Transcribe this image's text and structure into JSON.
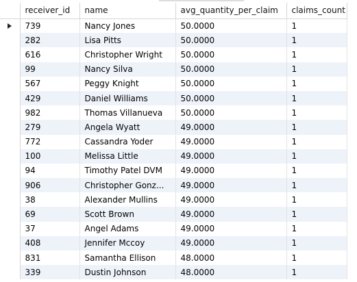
{
  "columns": {
    "receiver_id": "receiver_id",
    "name": "name",
    "avg_quantity_per_claim": "avg_quantity_per_claim",
    "claims_count": "claims_count"
  },
  "current_row_icon": "current-row-arrow-icon",
  "rows": [
    {
      "receiver_id": "739",
      "name": "Nancy Jones",
      "avg_quantity_per_claim": "50.0000",
      "claims_count": "1"
    },
    {
      "receiver_id": "282",
      "name": "Lisa Pitts",
      "avg_quantity_per_claim": "50.0000",
      "claims_count": "1"
    },
    {
      "receiver_id": "616",
      "name": "Christopher Wright",
      "avg_quantity_per_claim": "50.0000",
      "claims_count": "1"
    },
    {
      "receiver_id": "99",
      "name": "Nancy Silva",
      "avg_quantity_per_claim": "50.0000",
      "claims_count": "1"
    },
    {
      "receiver_id": "567",
      "name": "Peggy Knight",
      "avg_quantity_per_claim": "50.0000",
      "claims_count": "1"
    },
    {
      "receiver_id": "429",
      "name": "Daniel Williams",
      "avg_quantity_per_claim": "50.0000",
      "claims_count": "1"
    },
    {
      "receiver_id": "982",
      "name": "Thomas Villanueva",
      "avg_quantity_per_claim": "50.0000",
      "claims_count": "1"
    },
    {
      "receiver_id": "279",
      "name": "Angela Wyatt",
      "avg_quantity_per_claim": "49.0000",
      "claims_count": "1"
    },
    {
      "receiver_id": "772",
      "name": "Cassandra Yoder",
      "avg_quantity_per_claim": "49.0000",
      "claims_count": "1"
    },
    {
      "receiver_id": "100",
      "name": "Melissa Little",
      "avg_quantity_per_claim": "49.0000",
      "claims_count": "1"
    },
    {
      "receiver_id": "94",
      "name": "Timothy Patel DVM",
      "avg_quantity_per_claim": "49.0000",
      "claims_count": "1"
    },
    {
      "receiver_id": "906",
      "name": "Christopher Gonz...",
      "avg_quantity_per_claim": "49.0000",
      "claims_count": "1"
    },
    {
      "receiver_id": "38",
      "name": "Alexander Mullins",
      "avg_quantity_per_claim": "49.0000",
      "claims_count": "1"
    },
    {
      "receiver_id": "69",
      "name": "Scott Brown",
      "avg_quantity_per_claim": "49.0000",
      "claims_count": "1"
    },
    {
      "receiver_id": "37",
      "name": "Angel Adams",
      "avg_quantity_per_claim": "49.0000",
      "claims_count": "1"
    },
    {
      "receiver_id": "408",
      "name": "Jennifer Mccoy",
      "avg_quantity_per_claim": "49.0000",
      "claims_count": "1"
    },
    {
      "receiver_id": "831",
      "name": "Samantha Ellison",
      "avg_quantity_per_claim": "48.0000",
      "claims_count": "1"
    },
    {
      "receiver_id": "339",
      "name": "Dustin Johnson",
      "avg_quantity_per_claim": "48.0000",
      "claims_count": "1"
    }
  ]
}
